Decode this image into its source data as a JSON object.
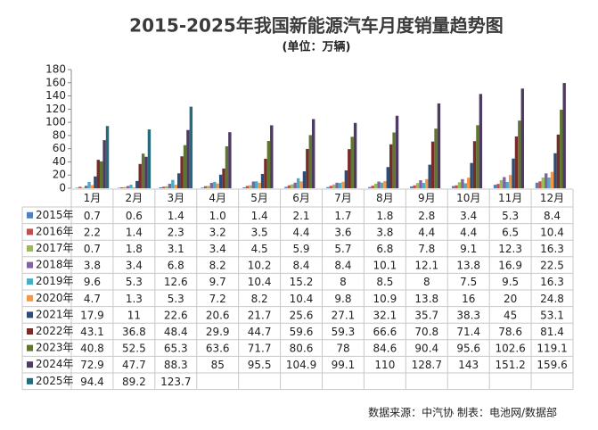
{
  "chart_data": {
    "type": "bar",
    "title": "2015-2025年我国新能源汽车月度销量趋势图",
    "subtitle": "(单位：万辆)",
    "source": "数据来源：中汽协  制表：电池网/数据部",
    "categories": [
      "1月",
      "2月",
      "3月",
      "4月",
      "5月",
      "6月",
      "7月",
      "8月",
      "9月",
      "10月",
      "11月",
      "12月"
    ],
    "ylim": [
      0,
      180
    ],
    "yticks": [
      0,
      20,
      40,
      60,
      80,
      100,
      120,
      140,
      160,
      180
    ],
    "series": [
      {
        "name": "2015年",
        "color": "#4f81bd",
        "values": [
          0.7,
          0.6,
          1.4,
          1.0,
          1.4,
          2.1,
          1.7,
          1.8,
          2.8,
          3.4,
          5.3,
          8.4
        ],
        "value_labels": [
          "0.7",
          "0.6",
          "1.4",
          "1.0",
          "1.4",
          "2.1",
          "1.7",
          "1.8",
          "2.8",
          "3.4",
          "5.3",
          "8.4"
        ]
      },
      {
        "name": "2016年",
        "color": "#c0504d",
        "values": [
          2.2,
          1.4,
          2.3,
          3.2,
          3.5,
          4.4,
          3.6,
          3.8,
          4.4,
          4.4,
          6.5,
          10.4
        ]
      },
      {
        "name": "2017年",
        "color": "#9bbb59",
        "values": [
          0.7,
          1.8,
          3.1,
          3.4,
          4.5,
          5.9,
          5.7,
          6.8,
          7.8,
          9.1,
          12.3,
          16.3
        ]
      },
      {
        "name": "2018年",
        "color": "#8064a2",
        "values": [
          3.8,
          3.4,
          6.8,
          8.2,
          10.2,
          8.4,
          8.4,
          10.1,
          12.1,
          13.8,
          16.9,
          22.5
        ]
      },
      {
        "name": "2019年",
        "color": "#4bacc6",
        "values": [
          9.6,
          5.3,
          12.6,
          9.7,
          10.4,
          15.2,
          8,
          8.5,
          8,
          7.5,
          9.5,
          16.3
        ]
      },
      {
        "name": "2020年",
        "color": "#f79646",
        "values": [
          4.7,
          1.3,
          5.3,
          7.2,
          8.2,
          10.4,
          9.8,
          10.9,
          13.8,
          16,
          20,
          24.8
        ]
      },
      {
        "name": "2021年",
        "color": "#2c4d75",
        "values": [
          17.9,
          11,
          22.6,
          20.6,
          21.7,
          25.6,
          27.1,
          32.1,
          35.7,
          38.3,
          45,
          53.1
        ]
      },
      {
        "name": "2022年",
        "color": "#772c2a",
        "values": [
          43.1,
          36.8,
          48.4,
          29.9,
          44.7,
          59.6,
          59.3,
          66.6,
          70.8,
          71.4,
          78.6,
          81.4
        ]
      },
      {
        "name": "2023年",
        "color": "#5f7530",
        "values": [
          40.8,
          52.5,
          65.3,
          63.6,
          71.7,
          80.6,
          78,
          84.6,
          90.4,
          95.6,
          102.6,
          119.1
        ]
      },
      {
        "name": "2024年",
        "color": "#4d3b62",
        "values": [
          72.9,
          47.7,
          88.3,
          85,
          95.5,
          104.9,
          99.1,
          110,
          128.7,
          143,
          151.2,
          159.6
        ]
      },
      {
        "name": "2025年",
        "color": "#276a7c",
        "values": [
          94.4,
          89.2,
          123.7,
          null,
          null,
          null,
          null,
          null,
          null,
          null,
          null,
          null
        ]
      }
    ]
  }
}
